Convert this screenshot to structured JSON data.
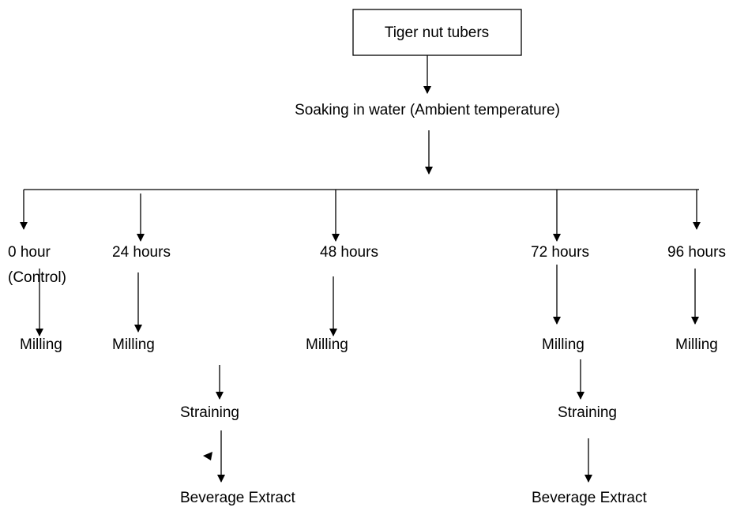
{
  "root": "Tiger nut tubers",
  "step": "Soaking in water (Ambient temperature)",
  "branches": [
    {
      "time": "0 hour",
      "note": "(Control)",
      "steps": [
        "Milling"
      ]
    },
    {
      "time": "24 hours",
      "steps": [
        "Milling",
        "Straining",
        "Beverage Extract"
      ]
    },
    {
      "time": "48 hours",
      "steps": [
        "Milling"
      ]
    },
    {
      "time": "72 hours",
      "steps": [
        "Milling",
        "Straining",
        "Beverage Extract"
      ]
    },
    {
      "time": "96 hours",
      "steps": [
        "Milling"
      ]
    }
  ]
}
